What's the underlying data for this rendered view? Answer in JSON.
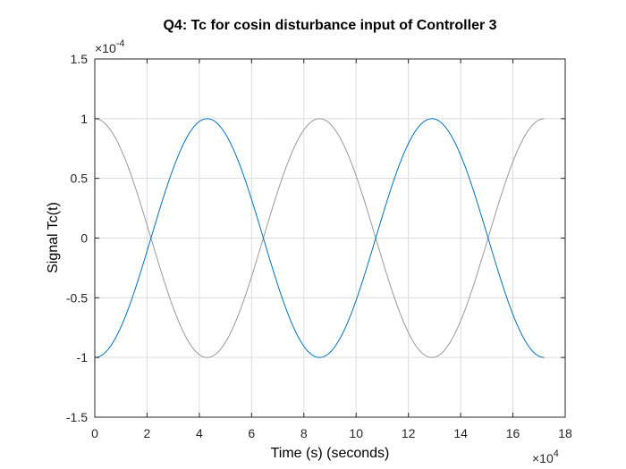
{
  "chart_data": {
    "type": "line",
    "title": "Q4: Tc for cosin disturbance input of Controller 3",
    "xlabel": "Time (s) (seconds)",
    "ylabel": "Signal Tc(t)",
    "x_exponent_label": "×10^4",
    "y_exponent_label": "×10^-4",
    "x_scale": 10000,
    "y_scale": 0.0001,
    "xlim": [
      0,
      180000
    ],
    "ylim": [
      -0.00015,
      0.00015
    ],
    "xticks": [
      0,
      20000,
      40000,
      60000,
      80000,
      100000,
      120000,
      140000,
      160000,
      180000
    ],
    "xtick_labels": [
      "0",
      "2",
      "4",
      "6",
      "8",
      "10",
      "12",
      "14",
      "16",
      "18"
    ],
    "yticks": [
      -0.00015,
      -0.0001,
      -5e-05,
      0,
      5e-05,
      0.0001,
      0.00015
    ],
    "ytick_labels": [
      "-1.5",
      "-1",
      "-0.5",
      "0",
      "0.5",
      "1",
      "1.5"
    ],
    "grid": true,
    "series": [
      {
        "color": "#999999",
        "kind": "cosine",
        "amplitude": 0.0001,
        "period": 86000,
        "x_start": 0,
        "x_end": 172000
      },
      {
        "color": "#0072BD",
        "kind": "negative-cosine",
        "amplitude": 0.0001,
        "period": 86000,
        "x_start": 0,
        "x_end": 172000,
        "initial_dip": -0.000122
      }
    ]
  }
}
